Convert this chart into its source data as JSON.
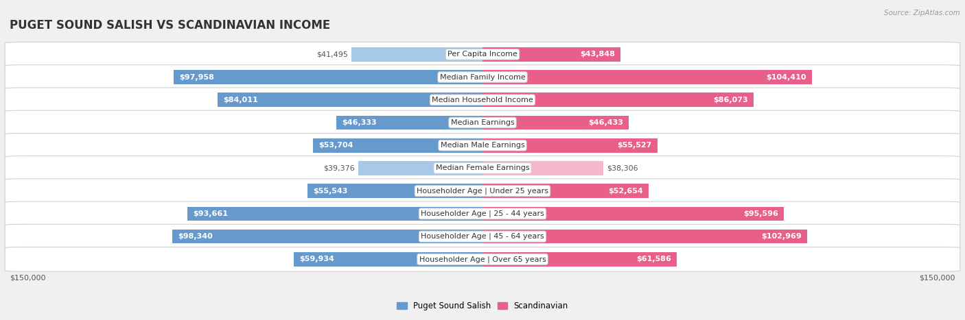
{
  "title": "PUGET SOUND SALISH VS SCANDINAVIAN INCOME",
  "source": "Source: ZipAtlas.com",
  "categories": [
    "Per Capita Income",
    "Median Family Income",
    "Median Household Income",
    "Median Earnings",
    "Median Male Earnings",
    "Median Female Earnings",
    "Householder Age | Under 25 years",
    "Householder Age | 25 - 44 years",
    "Householder Age | 45 - 64 years",
    "Householder Age | Over 65 years"
  ],
  "left_values": [
    41495,
    97958,
    84011,
    46333,
    53704,
    39376,
    55543,
    93661,
    98340,
    59934
  ],
  "right_values": [
    43848,
    104410,
    86073,
    46433,
    55527,
    38306,
    52654,
    95596,
    102969,
    61586
  ],
  "left_labels": [
    "$41,495",
    "$97,958",
    "$84,011",
    "$46,333",
    "$53,704",
    "$39,376",
    "$55,543",
    "$93,661",
    "$98,340",
    "$59,934"
  ],
  "right_labels": [
    "$43,848",
    "$104,410",
    "$86,073",
    "$46,433",
    "$55,527",
    "$38,306",
    "$52,654",
    "$95,596",
    "$102,969",
    "$61,586"
  ],
  "left_color_light": "#a8c8e8",
  "left_color_dark": "#6699cc",
  "right_color_light": "#f4b8cc",
  "right_color_dark": "#e8608a",
  "max_value": 150000,
  "x_label_left": "$150,000",
  "x_label_right": "$150,000",
  "legend_left": "Puget Sound Salish",
  "legend_right": "Scandinavian",
  "background_color": "#f0f0f0",
  "row_bg_color": "#ffffff",
  "row_border_color": "#d0d0d0",
  "bar_height": 0.62,
  "title_fontsize": 12,
  "label_fontsize": 8,
  "category_fontsize": 8,
  "axis_label_fontsize": 8,
  "threshold_inside": 0.28
}
